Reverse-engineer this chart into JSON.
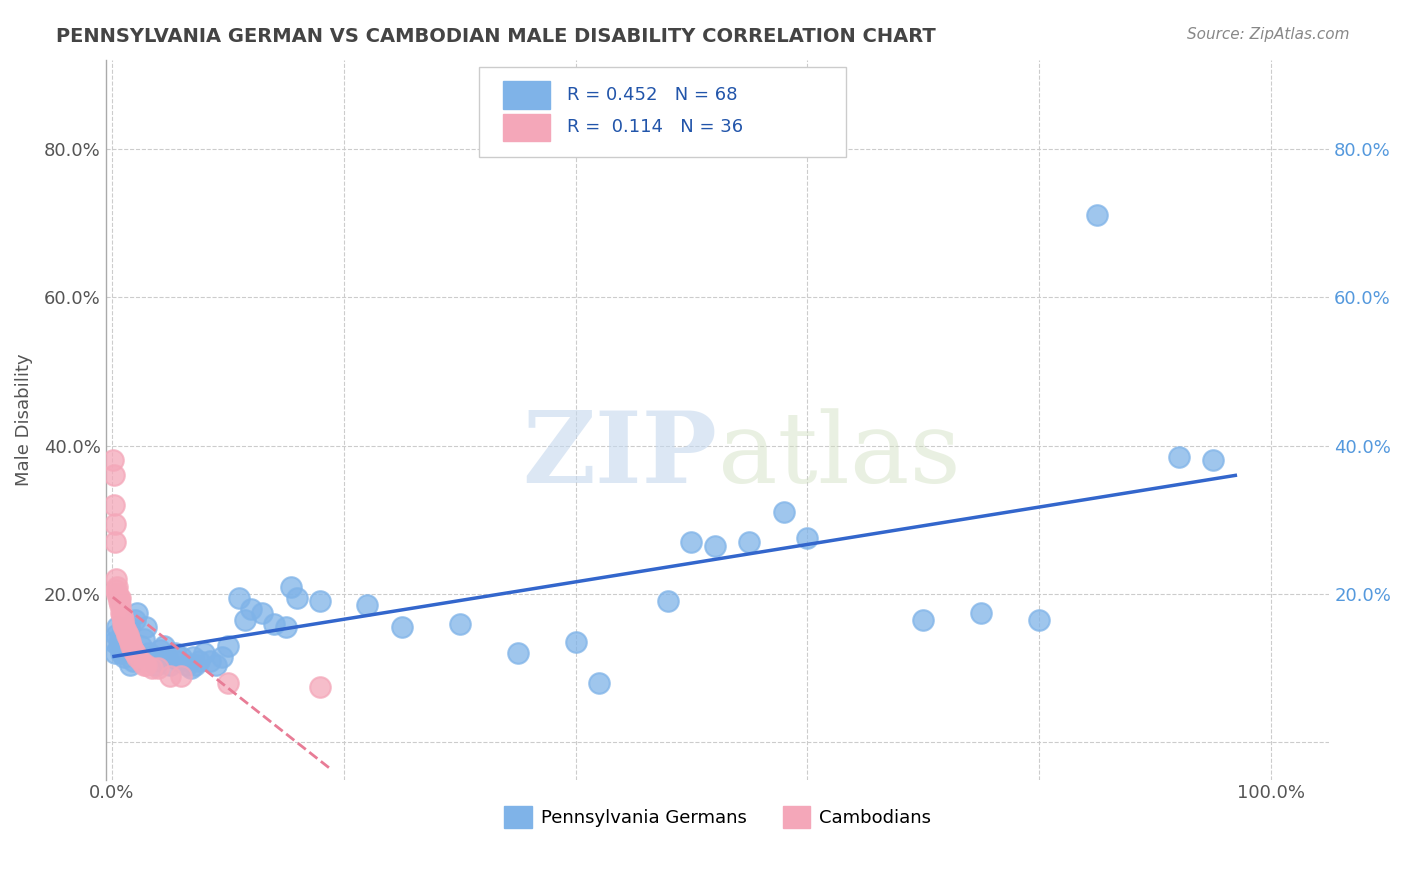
{
  "title": "PENNSYLVANIA GERMAN VS CAMBODIAN MALE DISABILITY CORRELATION CHART",
  "source": "Source: ZipAtlas.com",
  "xlabel": "",
  "ylabel": "Male Disability",
  "x_ticks": [
    0.0,
    0.2,
    0.4,
    0.6,
    0.8,
    1.0
  ],
  "x_tick_labels": [
    "0.0%",
    "",
    "",
    "",
    "",
    "100.0%"
  ],
  "y_ticks": [
    0.0,
    0.2,
    0.4,
    0.6,
    0.8
  ],
  "y_tick_labels": [
    "",
    "20.0%",
    "40.0%",
    "60.0%",
    "80.0%"
  ],
  "xlim": [
    -0.005,
    1.05
  ],
  "ylim": [
    -0.05,
    0.92
  ],
  "R_penn": 0.452,
  "N_penn": 68,
  "R_camb": 0.114,
  "N_camb": 36,
  "penn_color": "#7fb3e8",
  "camb_color": "#f4a7b9",
  "penn_line_color": "#3366cc",
  "camb_line_color": "#e87c96",
  "watermark_zip": "ZIP",
  "watermark_atlas": "atlas",
  "background_color": "#ffffff",
  "grid_color": "#cccccc",
  "penn_scatter": [
    [
      0.002,
      0.135
    ],
    [
      0.003,
      0.12
    ],
    [
      0.004,
      0.145
    ],
    [
      0.005,
      0.155
    ],
    [
      0.006,
      0.13
    ],
    [
      0.007,
      0.14
    ],
    [
      0.008,
      0.12
    ],
    [
      0.009,
      0.125
    ],
    [
      0.01,
      0.13
    ],
    [
      0.011,
      0.115
    ],
    [
      0.012,
      0.14
    ],
    [
      0.013,
      0.13
    ],
    [
      0.015,
      0.155
    ],
    [
      0.016,
      0.105
    ],
    [
      0.018,
      0.11
    ],
    [
      0.02,
      0.165
    ],
    [
      0.022,
      0.175
    ],
    [
      0.025,
      0.13
    ],
    [
      0.028,
      0.14
    ],
    [
      0.03,
      0.155
    ],
    [
      0.032,
      0.12
    ],
    [
      0.035,
      0.115
    ],
    [
      0.038,
      0.105
    ],
    [
      0.04,
      0.11
    ],
    [
      0.042,
      0.125
    ],
    [
      0.045,
      0.13
    ],
    [
      0.048,
      0.115
    ],
    [
      0.05,
      0.105
    ],
    [
      0.055,
      0.12
    ],
    [
      0.058,
      0.11
    ],
    [
      0.06,
      0.115
    ],
    [
      0.065,
      0.105
    ],
    [
      0.068,
      0.1
    ],
    [
      0.07,
      0.115
    ],
    [
      0.072,
      0.105
    ],
    [
      0.075,
      0.11
    ],
    [
      0.08,
      0.12
    ],
    [
      0.085,
      0.11
    ],
    [
      0.09,
      0.105
    ],
    [
      0.095,
      0.115
    ],
    [
      0.1,
      0.13
    ],
    [
      0.11,
      0.195
    ],
    [
      0.115,
      0.165
    ],
    [
      0.12,
      0.18
    ],
    [
      0.13,
      0.175
    ],
    [
      0.14,
      0.16
    ],
    [
      0.15,
      0.155
    ],
    [
      0.155,
      0.21
    ],
    [
      0.16,
      0.195
    ],
    [
      0.18,
      0.19
    ],
    [
      0.22,
      0.185
    ],
    [
      0.25,
      0.155
    ],
    [
      0.3,
      0.16
    ],
    [
      0.35,
      0.12
    ],
    [
      0.4,
      0.135
    ],
    [
      0.42,
      0.08
    ],
    [
      0.48,
      0.19
    ],
    [
      0.5,
      0.27
    ],
    [
      0.52,
      0.265
    ],
    [
      0.55,
      0.27
    ],
    [
      0.58,
      0.31
    ],
    [
      0.6,
      0.275
    ],
    [
      0.7,
      0.165
    ],
    [
      0.75,
      0.175
    ],
    [
      0.8,
      0.165
    ],
    [
      0.85,
      0.71
    ],
    [
      0.92,
      0.385
    ],
    [
      0.95,
      0.38
    ]
  ],
  "camb_scatter": [
    [
      0.001,
      0.38
    ],
    [
      0.002,
      0.36
    ],
    [
      0.002,
      0.32
    ],
    [
      0.003,
      0.295
    ],
    [
      0.003,
      0.27
    ],
    [
      0.004,
      0.22
    ],
    [
      0.004,
      0.205
    ],
    [
      0.005,
      0.21
    ],
    [
      0.005,
      0.2
    ],
    [
      0.006,
      0.195
    ],
    [
      0.006,
      0.19
    ],
    [
      0.007,
      0.195
    ],
    [
      0.007,
      0.185
    ],
    [
      0.008,
      0.175
    ],
    [
      0.009,
      0.17
    ],
    [
      0.01,
      0.165
    ],
    [
      0.01,
      0.16
    ],
    [
      0.011,
      0.155
    ],
    [
      0.012,
      0.15
    ],
    [
      0.013,
      0.145
    ],
    [
      0.014,
      0.145
    ],
    [
      0.015,
      0.14
    ],
    [
      0.016,
      0.135
    ],
    [
      0.017,
      0.13
    ],
    [
      0.018,
      0.125
    ],
    [
      0.02,
      0.12
    ],
    [
      0.022,
      0.115
    ],
    [
      0.025,
      0.11
    ],
    [
      0.028,
      0.105
    ],
    [
      0.03,
      0.105
    ],
    [
      0.035,
      0.1
    ],
    [
      0.04,
      0.1
    ],
    [
      0.05,
      0.09
    ],
    [
      0.06,
      0.09
    ],
    [
      0.1,
      0.08
    ],
    [
      0.18,
      0.075
    ]
  ],
  "legend_entries": [
    "Pennsylvania Germans",
    "Cambodians"
  ]
}
